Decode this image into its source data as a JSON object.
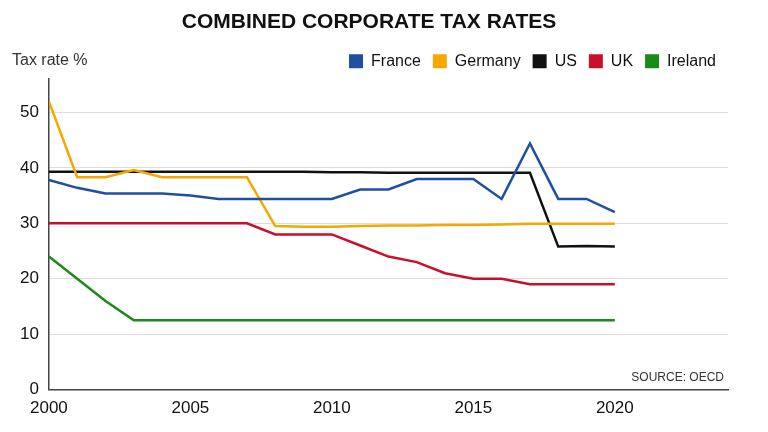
{
  "chart_data": {
    "type": "line",
    "title": "COMBINED CORPORATE TAX RATES",
    "y_label": "Tax rate %",
    "annotations": [
      "SOURCE: OECD"
    ],
    "x": [
      2000,
      2001,
      2002,
      2003,
      2004,
      2005,
      2006,
      2007,
      2008,
      2009,
      2010,
      2011,
      2012,
      2013,
      2014,
      2015,
      2016,
      2017,
      2018,
      2019,
      2020
    ],
    "series": [
      {
        "name": "France",
        "color": "#1f4fa0",
        "values": [
          37.8,
          36.4,
          35.4,
          35.4,
          35.4,
          35.0,
          34.4,
          34.4,
          34.4,
          34.4,
          34.4,
          36.1,
          36.1,
          38.0,
          38.0,
          38.0,
          34.4,
          44.4,
          34.4,
          34.4,
          32.0
        ]
      },
      {
        "name": "Germany",
        "color": "#f5a800",
        "values": [
          52.0,
          38.3,
          38.3,
          39.6,
          38.3,
          38.3,
          38.3,
          38.3,
          29.5,
          29.4,
          29.4,
          29.5,
          29.6,
          29.6,
          29.7,
          29.7,
          29.8,
          29.9,
          29.9,
          29.9,
          29.9
        ]
      },
      {
        "name": "US",
        "color": "#111111",
        "values": [
          39.3,
          39.3,
          39.3,
          39.3,
          39.3,
          39.3,
          39.3,
          39.3,
          39.3,
          39.3,
          39.2,
          39.2,
          39.1,
          39.1,
          39.1,
          39.1,
          39.1,
          39.1,
          25.8,
          25.9,
          25.8
        ]
      },
      {
        "name": "UK",
        "color": "#c8102e",
        "values": [
          30.0,
          30.0,
          30.0,
          30.0,
          30.0,
          30.0,
          30.0,
          30.0,
          28.0,
          28.0,
          28.0,
          26.0,
          24.0,
          23.0,
          21.0,
          20.0,
          20.0,
          19.0,
          19.0,
          19.0,
          19.0
        ]
      },
      {
        "name": "Ireland",
        "color": "#1a8a1a",
        "values": [
          24.0,
          20.0,
          16.0,
          12.5,
          12.5,
          12.5,
          12.5,
          12.5,
          12.5,
          12.5,
          12.5,
          12.5,
          12.5,
          12.5,
          12.5,
          12.5,
          12.5,
          12.5,
          12.5,
          12.5,
          12.5
        ]
      }
    ],
    "xlim": [
      2000,
      2024
    ],
    "xticks": [
      2000,
      2005,
      2010,
      2015,
      2020
    ],
    "ylim": [
      0,
      56
    ],
    "yticks": [
      0,
      10,
      20,
      30,
      40,
      50
    ],
    "grid": true,
    "legend": "top"
  }
}
